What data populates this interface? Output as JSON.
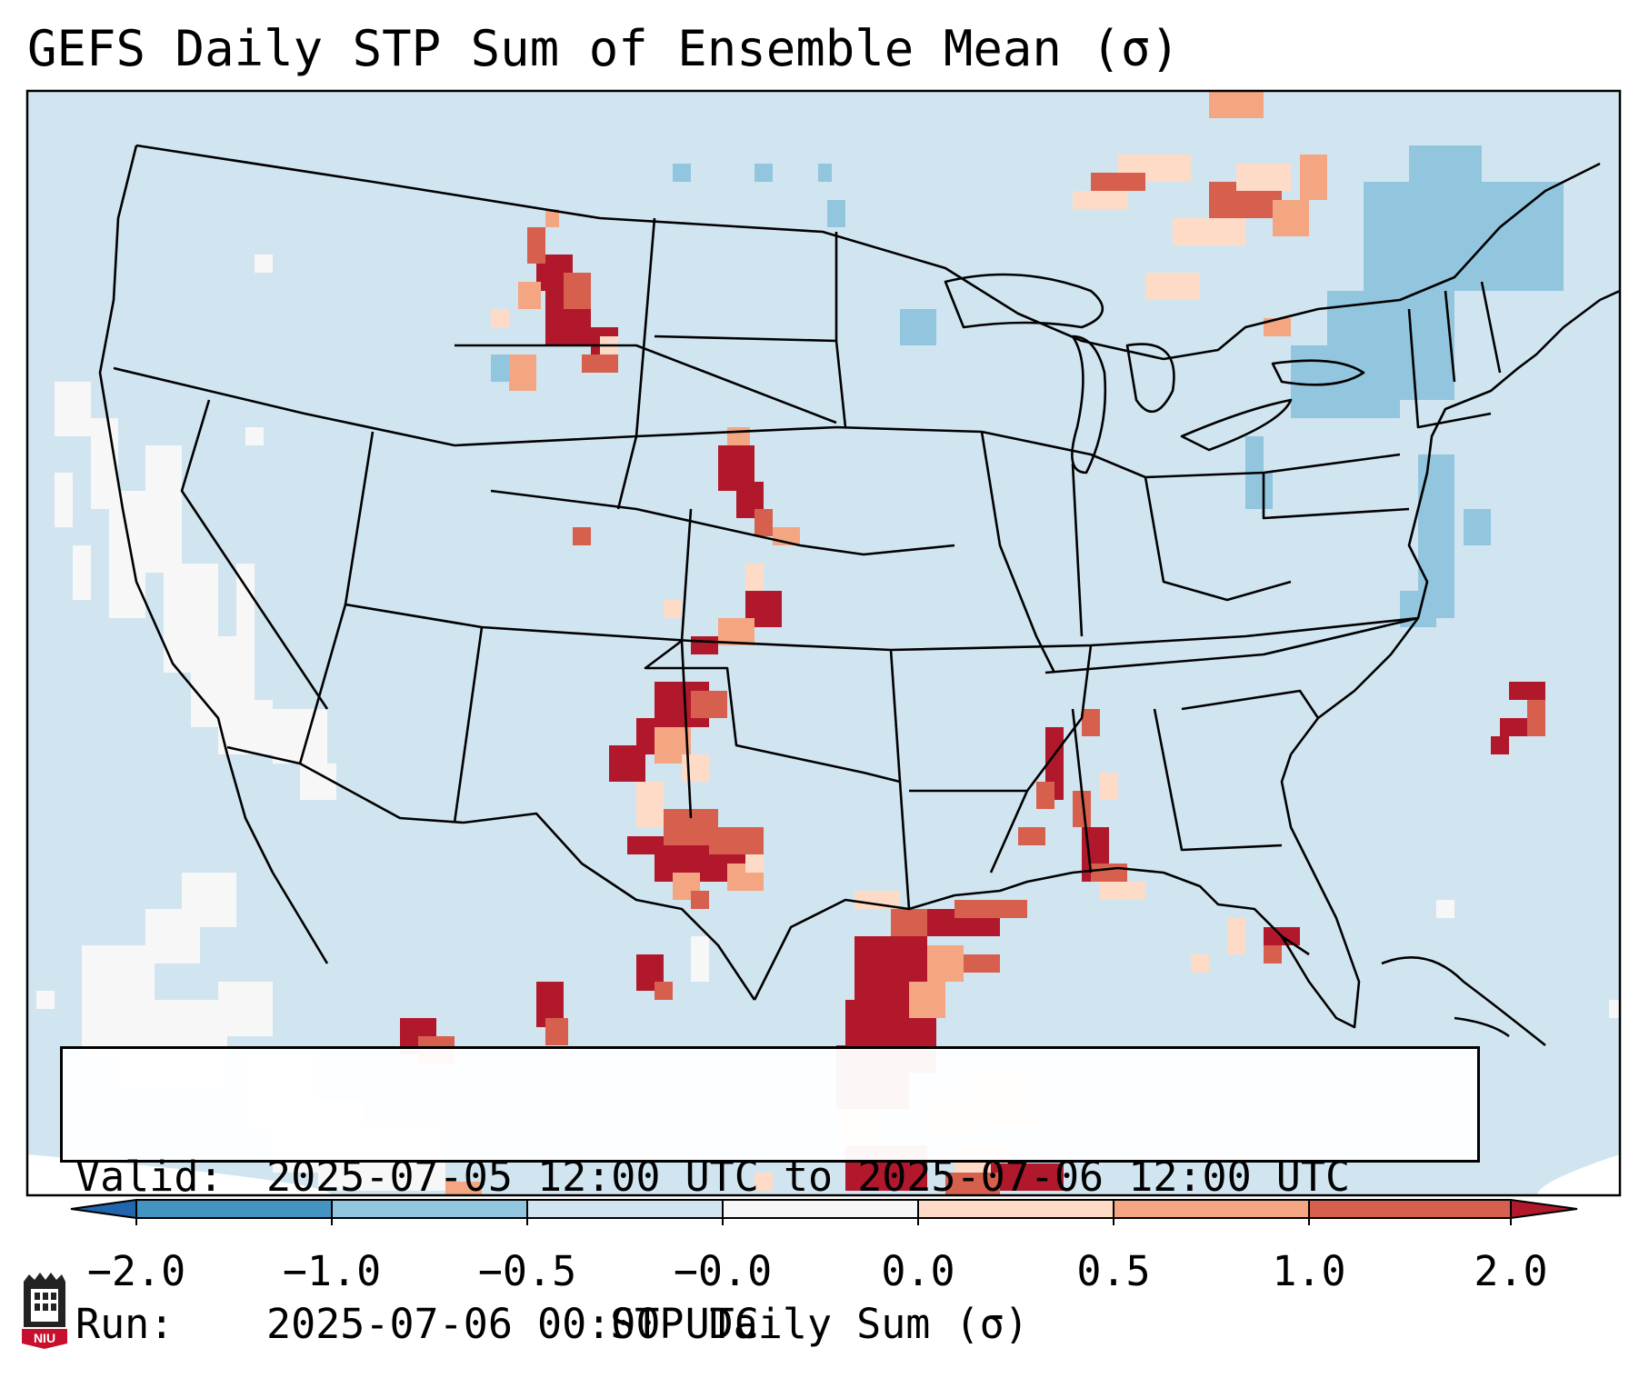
{
  "title": "GEFS Daily STP Sum of Ensemble Mean (σ)",
  "info": {
    "valid_label": "Valid:",
    "valid_text": "2025-07-05 12:00 UTC to 2025-07-06 12:00 UTC",
    "run_label": "Run:",
    "run_text": "2025-07-06 00:00 UTC"
  },
  "colorbar": {
    "label": "STP Daily Sum (σ)",
    "ticks": [
      "−2.0",
      "−1.0",
      "−0.5",
      "−0.0",
      "0.0",
      "0.5",
      "1.0",
      "2.0"
    ],
    "bins": [
      {
        "range": "< -2.0",
        "color": "#2166ac"
      },
      {
        "range": "-2.0 to -1.0",
        "color": "#4393c3"
      },
      {
        "range": "-1.0 to -0.5",
        "color": "#92c5de"
      },
      {
        "range": "-0.5 to -0.0",
        "color": "#d1e5f0"
      },
      {
        "range": "-0.0 to 0.0",
        "color": "#f7f7f7"
      },
      {
        "range": "0.0 to 0.5",
        "color": "#fddbc7"
      },
      {
        "range": "0.5 to 1.0",
        "color": "#f4a582"
      },
      {
        "range": "1.0 to 2.0",
        "color": "#d6604d"
      },
      {
        "range": "> 2.0",
        "color": "#b2182b"
      }
    ]
  },
  "map": {
    "background_color": "#d1e5f0",
    "region": "Contiguous United States",
    "features": [
      {
        "name": "Northern Plains",
        "sign": "positive",
        "max_bin": "> 2.0"
      },
      {
        "name": "Central Plains",
        "sign": "positive",
        "max_bin": "> 2.0"
      },
      {
        "name": "Southern High Plains",
        "sign": "positive",
        "max_bin": "> 2.0"
      },
      {
        "name": "Gulf Coast",
        "sign": "positive",
        "max_bin": "> 2.0"
      },
      {
        "name": "Lower Mississippi Valley",
        "sign": "positive",
        "max_bin": "> 2.0"
      },
      {
        "name": "Northeast",
        "sign": "negative",
        "max_bin": "-1.0 to -0.5"
      },
      {
        "name": "West Coast",
        "sign": "near zero",
        "max_bin": "-0.0 to 0.0"
      }
    ]
  },
  "logo": {
    "text": "NIU"
  }
}
